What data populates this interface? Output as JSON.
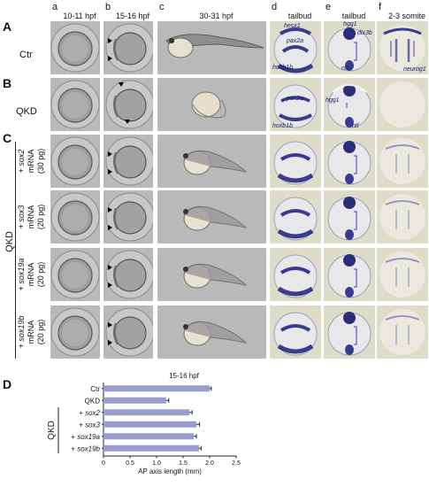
{
  "columns": [
    {
      "letter": "a",
      "label": "10-11 hpf"
    },
    {
      "letter": "b",
      "label": "15-16 hpf"
    },
    {
      "letter": "c",
      "label": "30-31 hpf"
    },
    {
      "letter": "d",
      "label": "tailbud"
    },
    {
      "letter": "e",
      "label": "tailbud"
    },
    {
      "letter": "f",
      "label": "2-3 somite"
    }
  ],
  "rows": {
    "A": {
      "letter": "A",
      "label": "Ctr"
    },
    "B": {
      "letter": "B",
      "label": "QKD"
    },
    "C": {
      "letter": "C",
      "group_label": "QKD"
    }
  },
  "rescue_rows": [
    {
      "gene": "+ sox2",
      "mrna": "mRNA",
      "dose": "(30 pg)"
    },
    {
      "gene": "+ sox3",
      "mrna": "mRNA",
      "dose": "(20 pg)"
    },
    {
      "gene": "+ sox19a",
      "mrna": "mRNA",
      "dose": "(20 pg)"
    },
    {
      "gene": "+ sox19b",
      "mrna": "mRNA",
      "dose": "(20 pg)"
    }
  ],
  "gene_labels": {
    "rowA_d": [
      "hesx1",
      "pax2a",
      "hoxb1b"
    ],
    "rowA_e": [
      "hgg1",
      "dlx3b",
      "ntl"
    ],
    "rowA_f": [
      "neurog1"
    ],
    "rowB_d": [
      "pax2a",
      "hoxb1b"
    ],
    "rowB_e": [
      "hgg1",
      "ntl"
    ]
  },
  "panel_D": {
    "letter": "D",
    "title": "15-16 hpf",
    "group_label": "QKD",
    "xlabel": "AP axis length (mm)"
  },
  "chart_data": {
    "type": "bar",
    "orientation": "horizontal",
    "title": "15-16 hpf",
    "xlabel": "AP axis length (mm)",
    "ylabel": "",
    "categories": [
      "Ctr",
      "QKD",
      "+ sox2",
      "+ sox3",
      "+ sox19a",
      "+ sox19b"
    ],
    "values": [
      2.0,
      1.18,
      1.62,
      1.75,
      1.7,
      1.8
    ],
    "errors": [
      0.03,
      0.05,
      0.05,
      0.06,
      0.05,
      0.04
    ],
    "xlim": [
      0,
      2.5
    ],
    "xticks": [
      "0",
      "0.5",
      "1.0",
      "1.5",
      "2.0",
      "2.5"
    ],
    "bar_color": "#9a9cc9",
    "grid": false
  }
}
